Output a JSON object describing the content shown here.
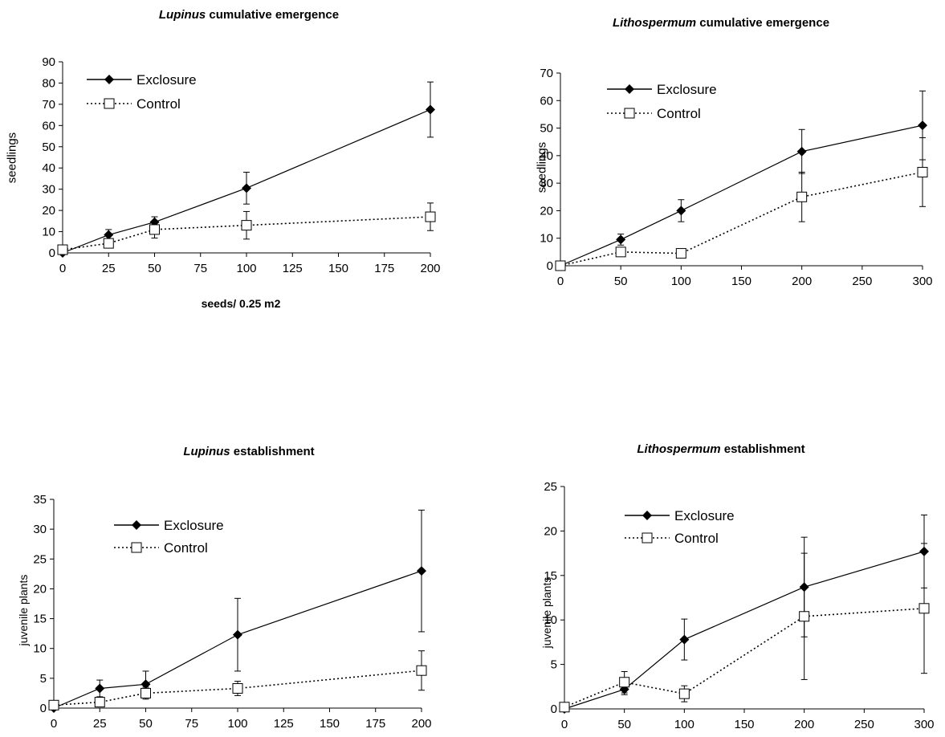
{
  "chart_data": [
    {
      "type": "line",
      "title_italic": "Lupinus",
      "title_rest": " cumulative emergence",
      "xlabel": "seeds/ 0.25 m2",
      "ylabel": "seedlings",
      "xlim": [
        0,
        200
      ],
      "ylim": [
        0,
        90
      ],
      "xticks": [
        0,
        25,
        50,
        75,
        100,
        125,
        150,
        175,
        200
      ],
      "yticks": [
        0,
        10,
        20,
        30,
        40,
        50,
        60,
        70,
        80,
        90
      ],
      "legend_position": "top-left",
      "series": [
        {
          "name": "Exclosure",
          "style": "solid",
          "marker": "diamond",
          "x": [
            0,
            25,
            50,
            100,
            200
          ],
          "y": [
            0,
            8.5,
            14.5,
            30.5,
            67.5
          ],
          "err": [
            0,
            2.5,
            2.5,
            7.5,
            13
          ]
        },
        {
          "name": "Control",
          "style": "dotted",
          "marker": "square",
          "x": [
            0,
            25,
            50,
            100,
            200
          ],
          "y": [
            1.5,
            4.5,
            11,
            13,
            17
          ],
          "err": [
            0,
            1.5,
            4,
            6.5,
            6.5
          ]
        }
      ]
    },
    {
      "type": "line",
      "title_italic": "Lithospermum",
      "title_rest": " cumulative emergence",
      "xlabel": "",
      "ylabel": "seedlings",
      "xlim": [
        0,
        300
      ],
      "ylim": [
        0,
        70
      ],
      "xticks": [
        0,
        50,
        100,
        150,
        200,
        250,
        300
      ],
      "yticks": [
        0,
        10,
        20,
        30,
        40,
        50,
        60,
        70
      ],
      "legend_position": "top-left",
      "series": [
        {
          "name": "Exclosure",
          "style": "solid",
          "marker": "diamond",
          "x": [
            0,
            50,
            100,
            200,
            300
          ],
          "y": [
            0,
            9.5,
            20,
            41.5,
            51
          ],
          "err": [
            0,
            2,
            4,
            8,
            12.5
          ]
        },
        {
          "name": "Control",
          "style": "dotted",
          "marker": "square",
          "x": [
            0,
            50,
            100,
            200,
            300
          ],
          "y": [
            0,
            5,
            4.5,
            25,
            34
          ],
          "err": [
            0,
            1.5,
            1.5,
            9,
            12.5
          ]
        }
      ]
    },
    {
      "type": "line",
      "title_italic": "Lupinus",
      "title_rest": " establishment",
      "xlabel": "",
      "ylabel": "juvenile plants",
      "xlim": [
        0,
        200
      ],
      "ylim": [
        0,
        35
      ],
      "xticks": [
        0,
        25,
        50,
        75,
        100,
        125,
        150,
        175,
        200
      ],
      "yticks": [
        0,
        5,
        10,
        15,
        20,
        25,
        30,
        35
      ],
      "legend_position": "top-center",
      "series": [
        {
          "name": "Exclosure",
          "style": "solid",
          "marker": "diamond",
          "x": [
            0,
            25,
            50,
            100,
            200
          ],
          "y": [
            0,
            3.3,
            4,
            12.3,
            23
          ],
          "err": [
            0,
            1.4,
            2.2,
            6.1,
            10.2
          ]
        },
        {
          "name": "Control",
          "style": "dotted",
          "marker": "square",
          "x": [
            0,
            25,
            50,
            100,
            200
          ],
          "y": [
            0.5,
            1,
            2.5,
            3.3,
            6.3
          ],
          "err": [
            0,
            0,
            1,
            1.2,
            3.3
          ]
        }
      ]
    },
    {
      "type": "line",
      "title_italic": "Lithospermum",
      "title_rest": " establishment",
      "xlabel": "",
      "ylabel": "juvenile plants",
      "xlim": [
        0,
        300
      ],
      "ylim": [
        0,
        25
      ],
      "xticks": [
        0,
        50,
        100,
        150,
        200,
        250,
        300
      ],
      "yticks": [
        0,
        5,
        10,
        15,
        20,
        25
      ],
      "legend_position": "top-left",
      "series": [
        {
          "name": "Exclosure",
          "style": "solid",
          "marker": "diamond",
          "x": [
            0,
            50,
            100,
            200,
            300
          ],
          "y": [
            0,
            2.2,
            7.8,
            13.7,
            17.7
          ],
          "err": [
            0,
            0.6,
            2.3,
            5.6,
            4.1
          ]
        },
        {
          "name": "Control",
          "style": "dotted",
          "marker": "square",
          "x": [
            0,
            50,
            100,
            200,
            300
          ],
          "y": [
            0.2,
            3,
            1.7,
            10.4,
            11.3
          ],
          "err": [
            0,
            1.2,
            0.9,
            7.1,
            7.3
          ]
        }
      ]
    }
  ]
}
